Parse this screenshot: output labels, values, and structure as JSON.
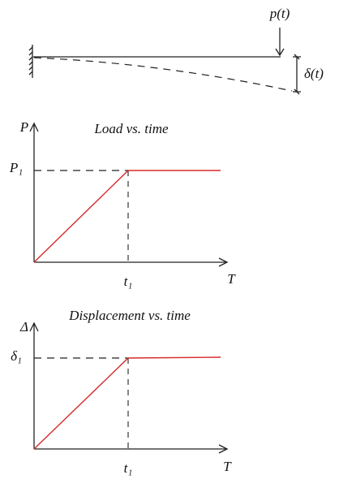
{
  "beam": {
    "load_label": "p(t)",
    "deflection_label": "δ(t)"
  },
  "load_chart": {
    "y_axis_label": "P",
    "title": "Load vs. time",
    "y_marker": "P₁",
    "x_marker": "t₁",
    "x_axis_label": "T"
  },
  "displacement_chart": {
    "y_axis_label": "Δ",
    "title": "Displacement vs. time",
    "y_marker": "δ₁",
    "x_marker": "t₁",
    "x_axis_label": "T"
  }
}
